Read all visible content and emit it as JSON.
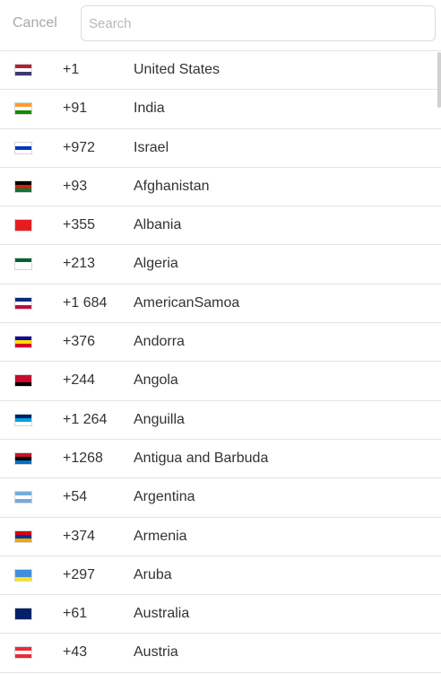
{
  "header": {
    "cancel_label": "Cancel",
    "search_placeholder": "Search",
    "search_value": ""
  },
  "countries": [
    {
      "code": "+1",
      "name": "United States",
      "flag": "us-flag-icon",
      "flag_colors": [
        "#b22234",
        "#ffffff",
        "#3c3b6e"
      ]
    },
    {
      "code": "+91",
      "name": "India",
      "flag": "in-flag-icon",
      "flag_colors": [
        "#ff9933",
        "#ffffff",
        "#138808"
      ]
    },
    {
      "code": "+972",
      "name": "Israel",
      "flag": "il-flag-icon",
      "flag_colors": [
        "#ffffff",
        "#0038b8",
        "#ffffff"
      ]
    },
    {
      "code": "+93",
      "name": "Afghanistan",
      "flag": "af-flag-icon",
      "flag_colors": [
        "#000000",
        "#d32011",
        "#007a36"
      ]
    },
    {
      "code": "+355",
      "name": "Albania",
      "flag": "al-flag-icon",
      "flag_colors": [
        "#e41e20",
        "#e41e20",
        "#e41e20"
      ]
    },
    {
      "code": "+213",
      "name": "Algeria",
      "flag": "dz-flag-icon",
      "flag_colors": [
        "#006233",
        "#ffffff",
        "#ffffff"
      ]
    },
    {
      "code": "+1 684",
      "name": "AmericanSamoa",
      "flag": "as-flag-icon",
      "flag_colors": [
        "#002b7f",
        "#ffffff",
        "#bf0d3e"
      ]
    },
    {
      "code": "+376",
      "name": "Andorra",
      "flag": "ad-flag-icon",
      "flag_colors": [
        "#10069f",
        "#fedf00",
        "#d50032"
      ]
    },
    {
      "code": "+244",
      "name": "Angola",
      "flag": "ao-flag-icon",
      "flag_colors": [
        "#cc092f",
        "#cc092f",
        "#000000"
      ]
    },
    {
      "code": "+1 264",
      "name": "Anguilla",
      "flag": "ai-flag-icon",
      "flag_colors": [
        "#012169",
        "#00a2dd",
        "#ffffff"
      ]
    },
    {
      "code": "+1268",
      "name": "Antigua and Barbuda",
      "flag": "ag-flag-icon",
      "flag_colors": [
        "#ce1126",
        "#000000",
        "#0072c6"
      ]
    },
    {
      "code": "+54",
      "name": "Argentina",
      "flag": "ar-flag-icon",
      "flag_colors": [
        "#74acdf",
        "#ffffff",
        "#74acdf"
      ]
    },
    {
      "code": "+374",
      "name": "Armenia",
      "flag": "am-flag-icon",
      "flag_colors": [
        "#d90012",
        "#0033a0",
        "#f2a800"
      ]
    },
    {
      "code": "+297",
      "name": "Aruba",
      "flag": "aw-flag-icon",
      "flag_colors": [
        "#418fde",
        "#418fde",
        "#fbe122"
      ]
    },
    {
      "code": "+61",
      "name": "Australia",
      "flag": "au-flag-icon",
      "flag_colors": [
        "#012169",
        "#012169",
        "#012169"
      ]
    },
    {
      "code": "+43",
      "name": "Austria",
      "flag": "at-flag-icon",
      "flag_colors": [
        "#ed2939",
        "#ffffff",
        "#ed2939"
      ]
    }
  ]
}
